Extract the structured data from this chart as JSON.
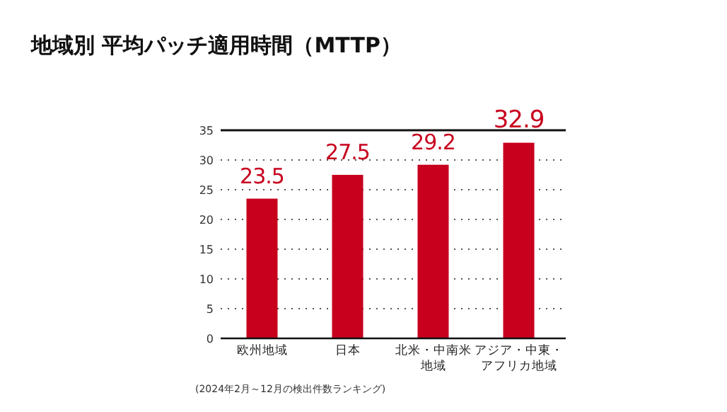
{
  "chart_data": {
    "type": "bar",
    "title": "地域別 平均パッチ適用時間（MTTP）",
    "categories": [
      "欧州地域",
      "日本",
      "北米・中南米地域",
      "アジア・中東・アフリカ地域"
    ],
    "values": [
      23.5,
      27.5,
      29.2,
      32.9
    ],
    "color": "#c8001e",
    "ylim": [
      0,
      35
    ],
    "yticks": [
      0,
      5,
      10,
      15,
      20,
      25,
      30,
      35
    ],
    "grid": "y",
    "data_labels": true,
    "annotations": [
      "(2024年2月～12月の検出件数ランキング)"
    ]
  }
}
